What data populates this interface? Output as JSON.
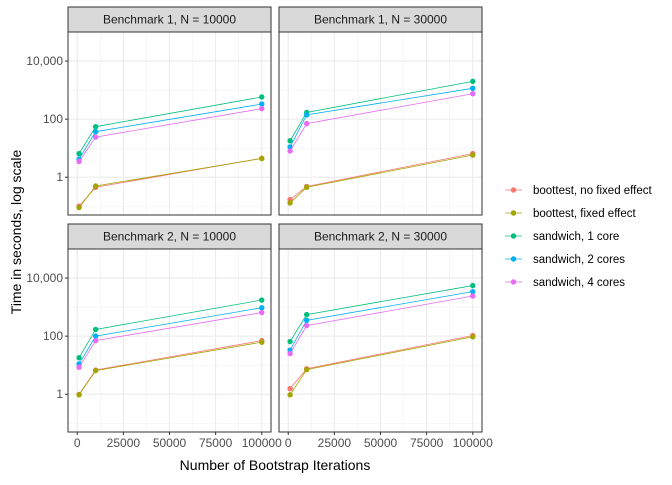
{
  "chart_data": {
    "type": "line",
    "xlabel": "Number of Bootstrap Iterations",
    "ylabel": "Time in seconds, log scale",
    "x_scale": "linear",
    "y_scale": "log10",
    "xlim": [
      -5000,
      105000
    ],
    "ylim": [
      0.05,
      100000
    ],
    "x_ticks": [
      0,
      25000,
      50000,
      75000,
      100000
    ],
    "x_tick_labels": [
      "0",
      "25000",
      "50000",
      "75000",
      "100000"
    ],
    "y_ticks": [
      1,
      100,
      10000
    ],
    "y_tick_labels": [
      "1",
      "100",
      "10,000"
    ],
    "grid": true,
    "legend_position": "right",
    "legend": [
      {
        "name": "boottest, no fixed effect",
        "color": "#F8766D"
      },
      {
        "name": "boottest, fixed effect",
        "color": "#A3A500"
      },
      {
        "name": "sandwich, 1 core",
        "color": "#00BF7D"
      },
      {
        "name": "sandwich, 2 cores",
        "color": "#00B0F6"
      },
      {
        "name": "sandwich, 4 cores",
        "color": "#E76BF3"
      }
    ],
    "panels": [
      {
        "title": "Benchmark 1, N = 10000",
        "x": [
          999,
          9999,
          99999
        ],
        "series": [
          {
            "name": "boottest, no fixed effect",
            "values": [
              0.1,
              0.45,
              4.5
            ]
          },
          {
            "name": "boottest, fixed effect",
            "values": [
              0.09,
              0.5,
              4.4
            ]
          },
          {
            "name": "sandwich, 1 core",
            "values": [
              6.5,
              55,
              580
            ]
          },
          {
            "name": "sandwich, 2 cores",
            "values": [
              4.2,
              37,
              330
            ]
          },
          {
            "name": "sandwich, 4 cores",
            "values": [
              3.5,
              24,
              230
            ]
          }
        ]
      },
      {
        "title": "Benchmark 1, N = 30000",
        "x": [
          999,
          9999,
          99999
        ],
        "series": [
          {
            "name": "boottest, no fixed effect",
            "values": [
              0.17,
              0.48,
              6.5
            ]
          },
          {
            "name": "boottest, fixed effect",
            "values": [
              0.13,
              0.45,
              5.8
            ]
          },
          {
            "name": "sandwich, 1 core",
            "values": [
              18,
              170,
              2000
            ]
          },
          {
            "name": "sandwich, 2 cores",
            "values": [
              11,
              140,
              1150
            ]
          },
          {
            "name": "sandwich, 4 cores",
            "values": [
              8,
              70,
              750
            ]
          }
        ]
      },
      {
        "title": "Benchmark 2, N = 10000",
        "x": [
          999,
          9999,
          99999
        ],
        "series": [
          {
            "name": "boottest, no fixed effect",
            "values": [
              0.98,
              6.8,
              70
            ]
          },
          {
            "name": "boottest, fixed effect",
            "values": [
              0.95,
              6.5,
              62
            ]
          },
          {
            "name": "sandwich, 1 core",
            "values": [
              18,
              170,
              1750
            ]
          },
          {
            "name": "sandwich, 2 cores",
            "values": [
              11,
              100,
              950
            ]
          },
          {
            "name": "sandwich, 4 cores",
            "values": [
              8.5,
              70,
              650
            ]
          }
        ]
      },
      {
        "title": "Benchmark 2, N = 30000",
        "x": [
          999,
          9999,
          99999
        ],
        "series": [
          {
            "name": "boottest, no fixed effect",
            "values": [
              1.55,
              7.5,
              105
            ]
          },
          {
            "name": "boottest, fixed effect",
            "values": [
              0.95,
              7.0,
              95
            ]
          },
          {
            "name": "sandwich, 1 core",
            "values": [
              65,
              550,
              5500
            ]
          },
          {
            "name": "sandwich, 2 cores",
            "values": [
              33,
              350,
              3400
            ]
          },
          {
            "name": "sandwich, 4 cores",
            "values": [
              25,
              230,
              2400
            ]
          }
        ]
      }
    ]
  }
}
